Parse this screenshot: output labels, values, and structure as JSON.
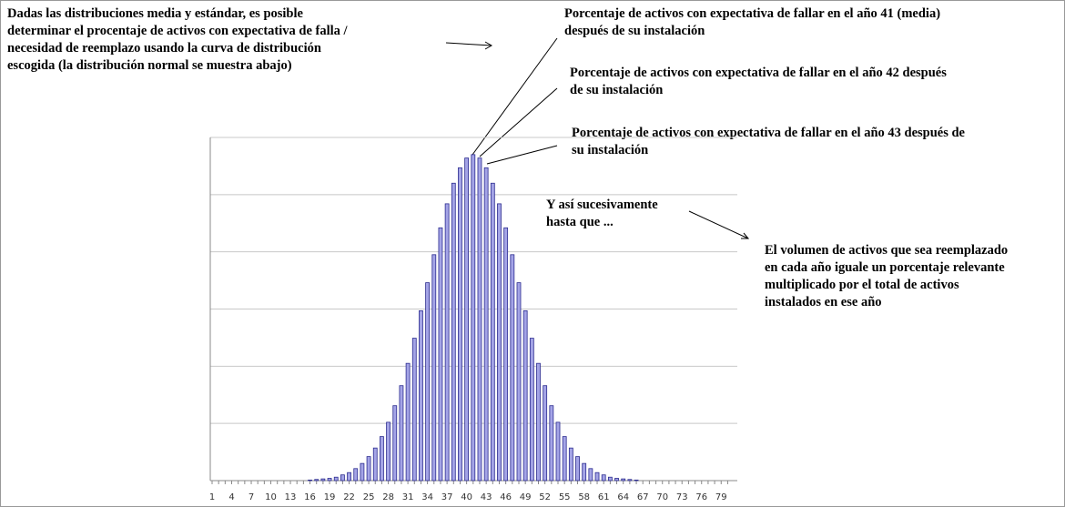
{
  "chart_data": {
    "type": "bar",
    "categories": [
      1,
      null,
      null,
      4,
      null,
      null,
      7,
      null,
      null,
      10,
      null,
      null,
      13,
      null,
      null,
      16,
      null,
      null,
      19,
      null,
      null,
      22,
      null,
      null,
      25,
      null,
      null,
      28,
      null,
      null,
      31,
      null,
      null,
      34,
      null,
      null,
      37,
      null,
      null,
      40,
      null,
      null,
      43,
      null,
      null,
      46,
      null,
      null,
      49,
      null,
      null,
      52,
      null,
      null,
      55,
      null,
      null,
      58,
      null,
      null,
      61,
      null,
      null,
      64,
      null,
      null,
      67,
      null,
      null,
      70,
      null,
      null,
      73,
      null,
      null,
      76,
      null,
      null,
      79,
      null
    ],
    "values": [
      0,
      0,
      0,
      0,
      0,
      0,
      0,
      0,
      0,
      0,
      0,
      0,
      0,
      0,
      0,
      0.01,
      0.02,
      0.03,
      0.04,
      0.06,
      0.1,
      0.14,
      0.21,
      0.3,
      0.42,
      0.57,
      0.77,
      1.02,
      1.31,
      1.66,
      2.05,
      2.49,
      2.97,
      3.46,
      3.95,
      4.42,
      4.84,
      5.2,
      5.47,
      5.64,
      5.7,
      5.64,
      5.47,
      5.2,
      4.84,
      4.42,
      3.95,
      3.46,
      2.97,
      2.49,
      2.05,
      1.66,
      1.31,
      1.02,
      0.77,
      0.57,
      0.42,
      0.3,
      0.21,
      0.14,
      0.1,
      0.06,
      0.04,
      0.03,
      0.02,
      0.01,
      0,
      0,
      0,
      0,
      0,
      0,
      0,
      0,
      0,
      0,
      0,
      0,
      0,
      0
    ],
    "color": "#a4a4e6",
    "edge_color": "#2b2b8f",
    "ylim": [
      0,
      6
    ],
    "yticks": [
      0,
      1,
      2,
      3,
      4,
      5,
      6
    ],
    "grid": true,
    "annotations": [
      {
        "lines": [
          "Dadas las distribuciones media y estándar, es posible",
          "determinar el procentaje de activos con expectativa de falla /",
          "necesidad de reemplazo usando la curva de distribución",
          "escogida (la distribución normal se muestra abajo)"
        ]
      },
      {
        "lines": [
          "Porcentaje de activos con expectativa de fallar en el año 41 (media)",
          "después de su instalación"
        ]
      },
      {
        "lines": [
          "Porcentaje de activos con expectativa de fallar en el año 42 después",
          "de su instalación"
        ]
      },
      {
        "lines": [
          "Porcentaje de activos con expectativa de fallar en el año 43 después de",
          "su instalación"
        ]
      },
      {
        "lines": [
          "Y así sucesivamente",
          "hasta que ..."
        ]
      },
      {
        "lines": [
          "El volumen de activos que sea reemplazado",
          "en cada año iguale un porcentaje relevante",
          "multiplicado por el total de activos",
          "instalados en ese año"
        ]
      }
    ]
  }
}
